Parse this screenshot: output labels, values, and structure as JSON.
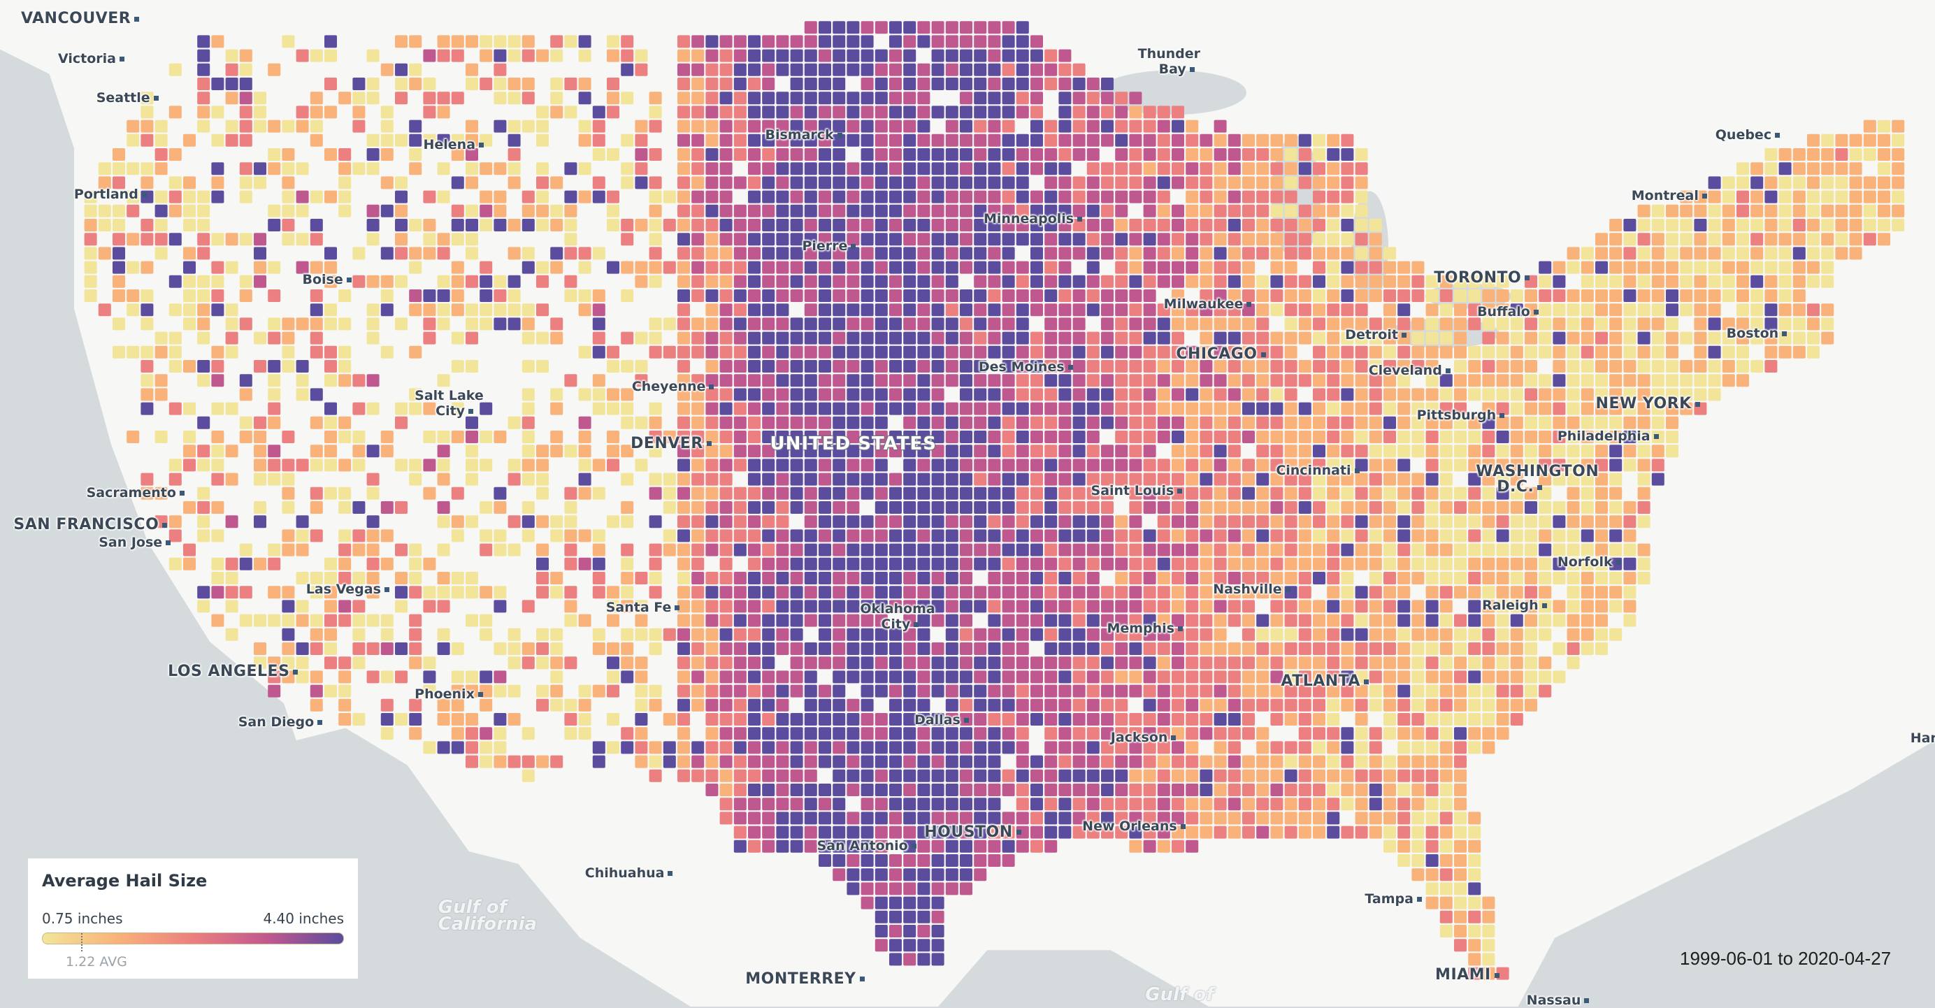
{
  "legend": {
    "title": "Average Hail Size",
    "min_label": "0.75 inches",
    "max_label": "4.40 inches",
    "avg_label": "1.22 AVG",
    "min": 0.75,
    "max": 4.4,
    "avg": 1.22,
    "colors": [
      "#f2e59a",
      "#f9b27a",
      "#ec7f7f",
      "#c05890",
      "#5b4c9e"
    ]
  },
  "date_range": "1999-06-01 to 2020-04-27",
  "colors": {
    "water": "#d5dadc",
    "land": "#f7f7f5",
    "label": "#3b4858"
  },
  "labels": [
    {
      "text": "VANCOUVER",
      "kind": "big"
    },
    {
      "text": "Victoria"
    },
    {
      "text": "Seattle"
    },
    {
      "text": "Portland"
    },
    {
      "text": "Helena"
    },
    {
      "text": "Bismarck"
    },
    {
      "text": "Thunder",
      "text2": "Bay"
    },
    {
      "text": "Quebec"
    },
    {
      "text": "Montreal"
    },
    {
      "text": "Minneapolis"
    },
    {
      "text": "Pierre"
    },
    {
      "text": "Boise"
    },
    {
      "text": "TORONTO",
      "kind": "big"
    },
    {
      "text": "Milwaukee"
    },
    {
      "text": "Buffalo"
    },
    {
      "text": "Detroit"
    },
    {
      "text": "Boston"
    },
    {
      "text": "CHICAGO",
      "kind": "big"
    },
    {
      "text": "Des Moines"
    },
    {
      "text": "Cleveland"
    },
    {
      "text": "Salt Lake",
      "text2": "City"
    },
    {
      "text": "Cheyenne"
    },
    {
      "text": "NEW YORK",
      "kind": "big"
    },
    {
      "text": "Pittsburgh"
    },
    {
      "text": "Philadelphia"
    },
    {
      "text": "DENVER",
      "kind": "big"
    },
    {
      "text": "UNITED STATES",
      "kind": "country"
    },
    {
      "text": "Cincinnati"
    },
    {
      "text": "WASHINGTON",
      "text2": "D.C.",
      "kind": "big"
    },
    {
      "text": "Sacramento"
    },
    {
      "text": "Saint Louis"
    },
    {
      "text": "SAN FRANCISCO",
      "kind": "big"
    },
    {
      "text": "San Jose"
    },
    {
      "text": "Norfolk"
    },
    {
      "text": "Nashville"
    },
    {
      "text": "Las Vegas"
    },
    {
      "text": "Santa Fe"
    },
    {
      "text": "Oklahoma",
      "text2": "City"
    },
    {
      "text": "Raleigh"
    },
    {
      "text": "Memphis"
    },
    {
      "text": "LOS ANGELES",
      "kind": "big"
    },
    {
      "text": "ATLANTA",
      "kind": "big"
    },
    {
      "text": "Phoenix"
    },
    {
      "text": "San Diego"
    },
    {
      "text": "Dallas"
    },
    {
      "text": "Jackson"
    },
    {
      "text": "Har"
    },
    {
      "text": "New Orleans"
    },
    {
      "text": "HOUSTON",
      "kind": "big"
    },
    {
      "text": "San Antonio"
    },
    {
      "text": "Chihuahua"
    },
    {
      "text": "Tampa"
    },
    {
      "text": "Gulf of",
      "text2": "California",
      "kind": "water"
    },
    {
      "text": "MIAMI",
      "kind": "big"
    },
    {
      "text": "MONTERREY",
      "kind": "big"
    },
    {
      "text": "Gulf of",
      "kind": "water"
    },
    {
      "text": "Nassau"
    }
  ]
}
